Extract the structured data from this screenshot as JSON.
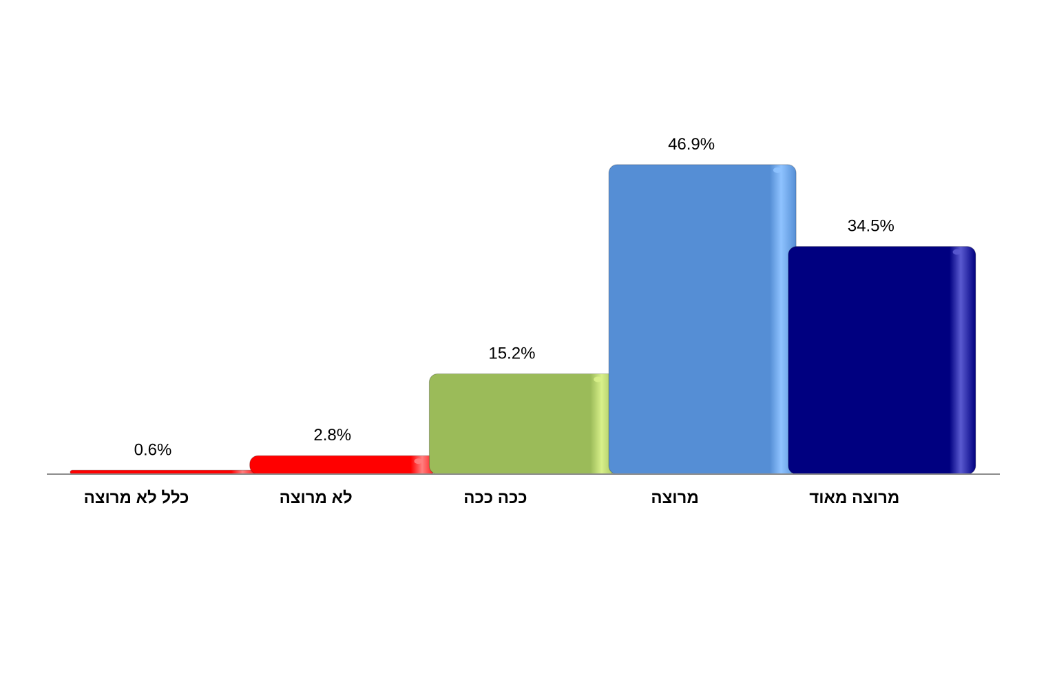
{
  "chart_data": {
    "type": "bar",
    "categories": [
      "כלל לא מרוצה",
      "לא מרוצה",
      "ככה ככה",
      "מרוצה",
      "מרוצה מאוד"
    ],
    "values": [
      0.6,
      2.8,
      15.2,
      46.9,
      34.5
    ],
    "data_labels": [
      "0.6%",
      "2.8%",
      "15.2%",
      "46.9%",
      "34.5%"
    ],
    "colors": [
      "#FF0000",
      "#FF0000",
      "#9BBB59",
      "#558ED5",
      "#000080"
    ],
    "highlight_colors": [
      "#FF8080",
      "#FF8080",
      "#D8F08A",
      "#8FC3FF",
      "#5A5AD0"
    ],
    "title": "",
    "xlabel": "",
    "ylabel": "",
    "ylim": [
      0,
      60
    ],
    "grid": false,
    "legend": "none"
  }
}
